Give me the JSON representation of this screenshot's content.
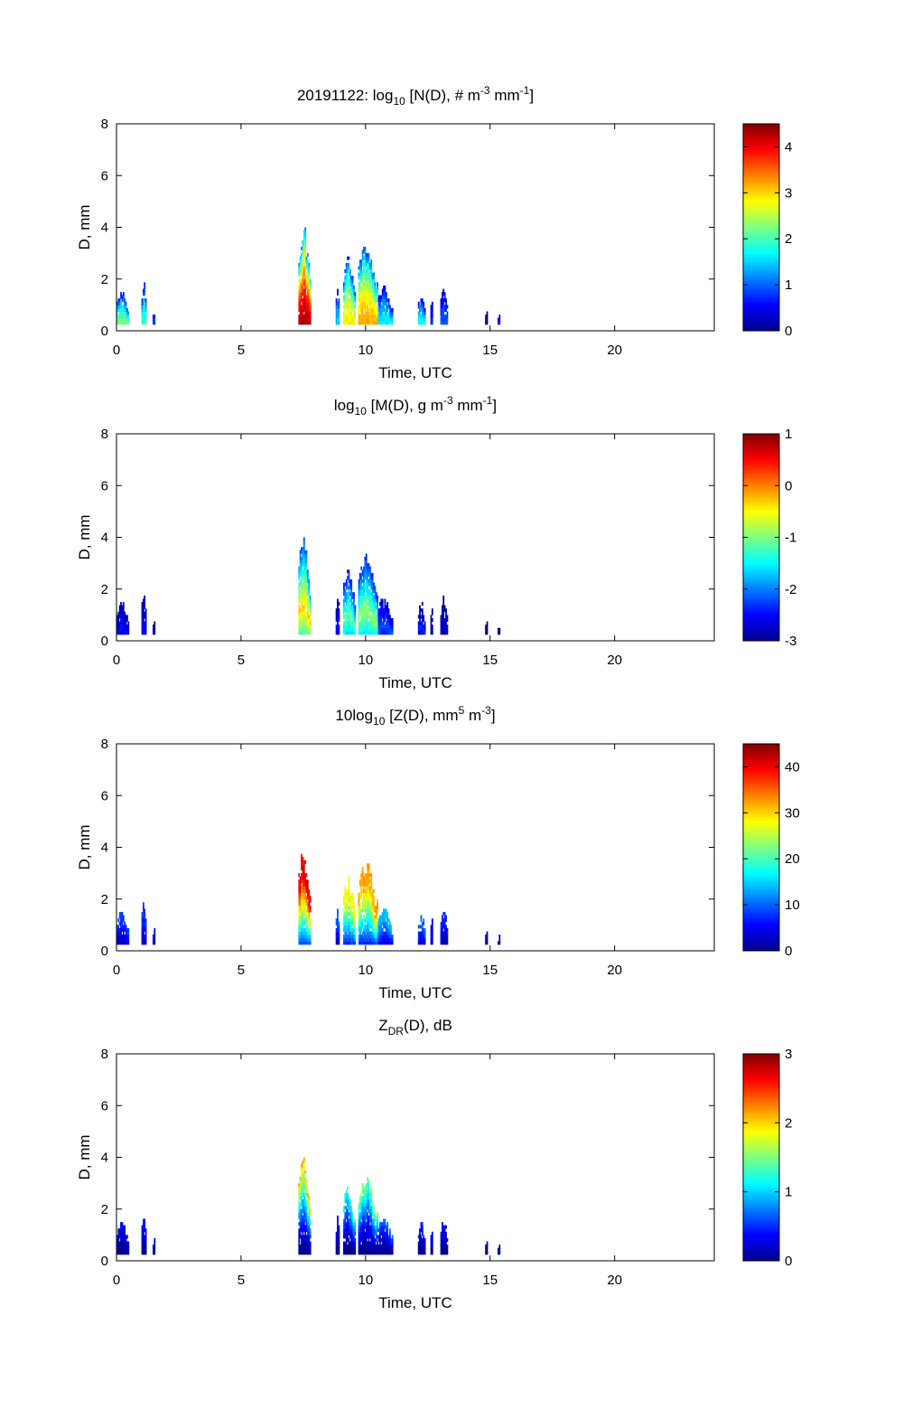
{
  "figure": {
    "panels_count": 4
  },
  "chart_data": [
    {
      "type": "heatmap",
      "title_parts": [
        {
          "text": "20191122: log",
          "style": "normal"
        },
        {
          "text": "10",
          "style": "sub"
        },
        {
          "text": " [N(D), # m",
          "style": "normal"
        },
        {
          "text": "-3",
          "style": "sup"
        },
        {
          "text": " mm",
          "style": "normal"
        },
        {
          "text": "-1",
          "style": "sup"
        },
        {
          "text": "]",
          "style": "normal"
        }
      ],
      "xlabel": "Time, UTC",
      "ylabel": "D, mm",
      "xlim": [
        0,
        24
      ],
      "ylim": [
        0,
        8
      ],
      "xticks": [
        0,
        5,
        10,
        15,
        20
      ],
      "yticks": [
        0,
        2,
        4,
        6,
        8
      ],
      "colorbar": {
        "min": 0,
        "max": 4.5,
        "ticks": [
          0,
          1,
          2,
          3,
          4
        ],
        "colormap": "jet"
      },
      "events": [
        {
          "t0": 0.0,
          "t1": 0.5,
          "dmax": 1.5,
          "peak": 2.3
        },
        {
          "t0": 1.0,
          "t1": 1.2,
          "dmax": 1.9,
          "peak": 2.0
        },
        {
          "t0": 1.45,
          "t1": 1.55,
          "dmax": 0.9,
          "peak": 1.0
        },
        {
          "t0": 7.3,
          "t1": 7.8,
          "dmax": 4.1,
          "peak": 4.3
        },
        {
          "t0": 8.8,
          "t1": 8.95,
          "dmax": 1.8,
          "peak": 1.5
        },
        {
          "t0": 9.1,
          "t1": 9.6,
          "dmax": 2.9,
          "peak": 2.9
        },
        {
          "t0": 9.7,
          "t1": 10.5,
          "dmax": 3.5,
          "peak": 3.2
        },
        {
          "t0": 10.5,
          "t1": 11.1,
          "dmax": 1.7,
          "peak": 1.7
        },
        {
          "t0": 12.1,
          "t1": 12.4,
          "dmax": 1.5,
          "peak": 1.8
        },
        {
          "t0": 12.6,
          "t1": 12.7,
          "dmax": 1.3,
          "peak": 0.8
        },
        {
          "t0": 13.0,
          "t1": 13.3,
          "dmax": 1.7,
          "peak": 1.0
        },
        {
          "t0": 14.8,
          "t1": 14.9,
          "dmax": 0.8,
          "peak": 0.2
        },
        {
          "t0": 15.3,
          "t1": 15.4,
          "dmax": 0.6,
          "peak": 1.0
        }
      ]
    },
    {
      "type": "heatmap",
      "title_parts": [
        {
          "text": "log",
          "style": "normal"
        },
        {
          "text": "10",
          "style": "sub"
        },
        {
          "text": " [M(D), g m",
          "style": "normal"
        },
        {
          "text": "-3",
          "style": "sup"
        },
        {
          "text": " mm",
          "style": "normal"
        },
        {
          "text": "-1",
          "style": "sup"
        },
        {
          "text": "]",
          "style": "normal"
        }
      ],
      "xlabel": "Time, UTC",
      "ylabel": "D, mm",
      "xlim": [
        0,
        24
      ],
      "ylim": [
        0,
        8
      ],
      "xticks": [
        0,
        5,
        10,
        15,
        20
      ],
      "yticks": [
        0,
        2,
        4,
        6,
        8
      ],
      "colorbar": {
        "min": -3,
        "max": 1,
        "ticks": [
          -3,
          -2,
          -1,
          0,
          1
        ],
        "colormap": "jet"
      },
      "events": [
        {
          "t0": 0.0,
          "t1": 0.5,
          "dmax": 1.5,
          "peak": -2.5
        },
        {
          "t0": 1.0,
          "t1": 1.2,
          "dmax": 1.9,
          "peak": -2.5
        },
        {
          "t0": 1.45,
          "t1": 1.55,
          "dmax": 0.9,
          "peak": -2.8
        },
        {
          "t0": 7.3,
          "t1": 7.8,
          "dmax": 4.1,
          "peak": -0.3
        },
        {
          "t0": 8.8,
          "t1": 8.95,
          "dmax": 1.8,
          "peak": -2.5
        },
        {
          "t0": 9.1,
          "t1": 9.6,
          "dmax": 2.9,
          "peak": -1.1
        },
        {
          "t0": 9.7,
          "t1": 10.5,
          "dmax": 3.5,
          "peak": -0.9
        },
        {
          "t0": 10.5,
          "t1": 11.1,
          "dmax": 1.7,
          "peak": -2.2
        },
        {
          "t0": 12.1,
          "t1": 12.4,
          "dmax": 1.5,
          "peak": -2.4
        },
        {
          "t0": 12.6,
          "t1": 12.7,
          "dmax": 1.3,
          "peak": -2.8
        },
        {
          "t0": 13.0,
          "t1": 13.3,
          "dmax": 1.7,
          "peak": -2.7
        },
        {
          "t0": 14.8,
          "t1": 14.9,
          "dmax": 0.8,
          "peak": -3.0
        },
        {
          "t0": 15.3,
          "t1": 15.4,
          "dmax": 0.6,
          "peak": -2.9
        }
      ]
    },
    {
      "type": "heatmap",
      "title_parts": [
        {
          "text": "10log",
          "style": "normal"
        },
        {
          "text": "10",
          "style": "sub"
        },
        {
          "text": " [Z(D),  mm",
          "style": "normal"
        },
        {
          "text": "5",
          "style": "sup"
        },
        {
          "text": " m",
          "style": "normal"
        },
        {
          "text": "-3",
          "style": "sup"
        },
        {
          "text": "]",
          "style": "normal"
        }
      ],
      "xlabel": "Time, UTC",
      "ylabel": "D, mm",
      "xlim": [
        0,
        24
      ],
      "ylim": [
        0,
        8
      ],
      "xticks": [
        0,
        5,
        10,
        15,
        20
      ],
      "yticks": [
        0,
        2,
        4,
        6,
        8
      ],
      "colorbar": {
        "min": 0,
        "max": 45,
        "ticks": [
          0,
          10,
          20,
          30,
          40
        ],
        "colormap": "jet"
      },
      "events": [
        {
          "t0": 0.0,
          "t1": 0.5,
          "dmax": 1.5,
          "peak": 8
        },
        {
          "t0": 1.0,
          "t1": 1.2,
          "dmax": 1.9,
          "peak": 8
        },
        {
          "t0": 1.45,
          "t1": 1.55,
          "dmax": 0.9,
          "peak": 4
        },
        {
          "t0": 7.3,
          "t1": 7.8,
          "dmax": 4.1,
          "peak": 40
        },
        {
          "t0": 8.8,
          "t1": 8.95,
          "dmax": 1.8,
          "peak": 10
        },
        {
          "t0": 9.1,
          "t1": 9.6,
          "dmax": 2.9,
          "peak": 28
        },
        {
          "t0": 9.7,
          "t1": 10.5,
          "dmax": 3.5,
          "peak": 32
        },
        {
          "t0": 10.5,
          "t1": 11.1,
          "dmax": 1.7,
          "peak": 14
        },
        {
          "t0": 12.1,
          "t1": 12.4,
          "dmax": 1.5,
          "peak": 10
        },
        {
          "t0": 12.6,
          "t1": 12.7,
          "dmax": 1.3,
          "peak": 6
        },
        {
          "t0": 13.0,
          "t1": 13.3,
          "dmax": 1.7,
          "peak": 7
        },
        {
          "t0": 14.8,
          "t1": 14.9,
          "dmax": 0.8,
          "peak": 3
        },
        {
          "t0": 15.3,
          "t1": 15.4,
          "dmax": 0.6,
          "peak": 4
        }
      ]
    },
    {
      "type": "heatmap",
      "title_parts": [
        {
          "text": "Z",
          "style": "normal"
        },
        {
          "text": "DR",
          "style": "sub"
        },
        {
          "text": "(D), dB",
          "style": "normal"
        }
      ],
      "xlabel": "Time, UTC",
      "ylabel": "D, mm",
      "xlim": [
        0,
        24
      ],
      "ylim": [
        0,
        8
      ],
      "xticks": [
        0,
        5,
        10,
        15,
        20
      ],
      "yticks": [
        0,
        2,
        4,
        6,
        8
      ],
      "colorbar": {
        "min": 0,
        "max": 3,
        "ticks": [
          0,
          1,
          2,
          3
        ],
        "colormap": "jet"
      },
      "events": [
        {
          "t0": 0.0,
          "t1": 0.5,
          "dmax": 1.5,
          "peak": 0.4
        },
        {
          "t0": 1.0,
          "t1": 1.2,
          "dmax": 1.9,
          "peak": 0.5
        },
        {
          "t0": 1.45,
          "t1": 1.55,
          "dmax": 0.9,
          "peak": 0.2
        },
        {
          "t0": 7.3,
          "t1": 7.8,
          "dmax": 4.1,
          "peak": 2.2
        },
        {
          "t0": 8.8,
          "t1": 8.95,
          "dmax": 1.8,
          "peak": 0.4
        },
        {
          "t0": 9.1,
          "t1": 9.6,
          "dmax": 2.9,
          "peak": 1.3
        },
        {
          "t0": 9.7,
          "t1": 10.5,
          "dmax": 3.5,
          "peak": 1.6
        },
        {
          "t0": 10.5,
          "t1": 11.1,
          "dmax": 1.7,
          "peak": 0.7
        },
        {
          "t0": 12.1,
          "t1": 12.4,
          "dmax": 1.5,
          "peak": 0.5
        },
        {
          "t0": 12.6,
          "t1": 12.7,
          "dmax": 1.3,
          "peak": 0.4
        },
        {
          "t0": 13.0,
          "t1": 13.3,
          "dmax": 1.7,
          "peak": 0.4
        },
        {
          "t0": 14.8,
          "t1": 14.9,
          "dmax": 0.8,
          "peak": 0.2
        },
        {
          "t0": 15.3,
          "t1": 15.4,
          "dmax": 0.6,
          "peak": 0.3
        }
      ]
    }
  ]
}
